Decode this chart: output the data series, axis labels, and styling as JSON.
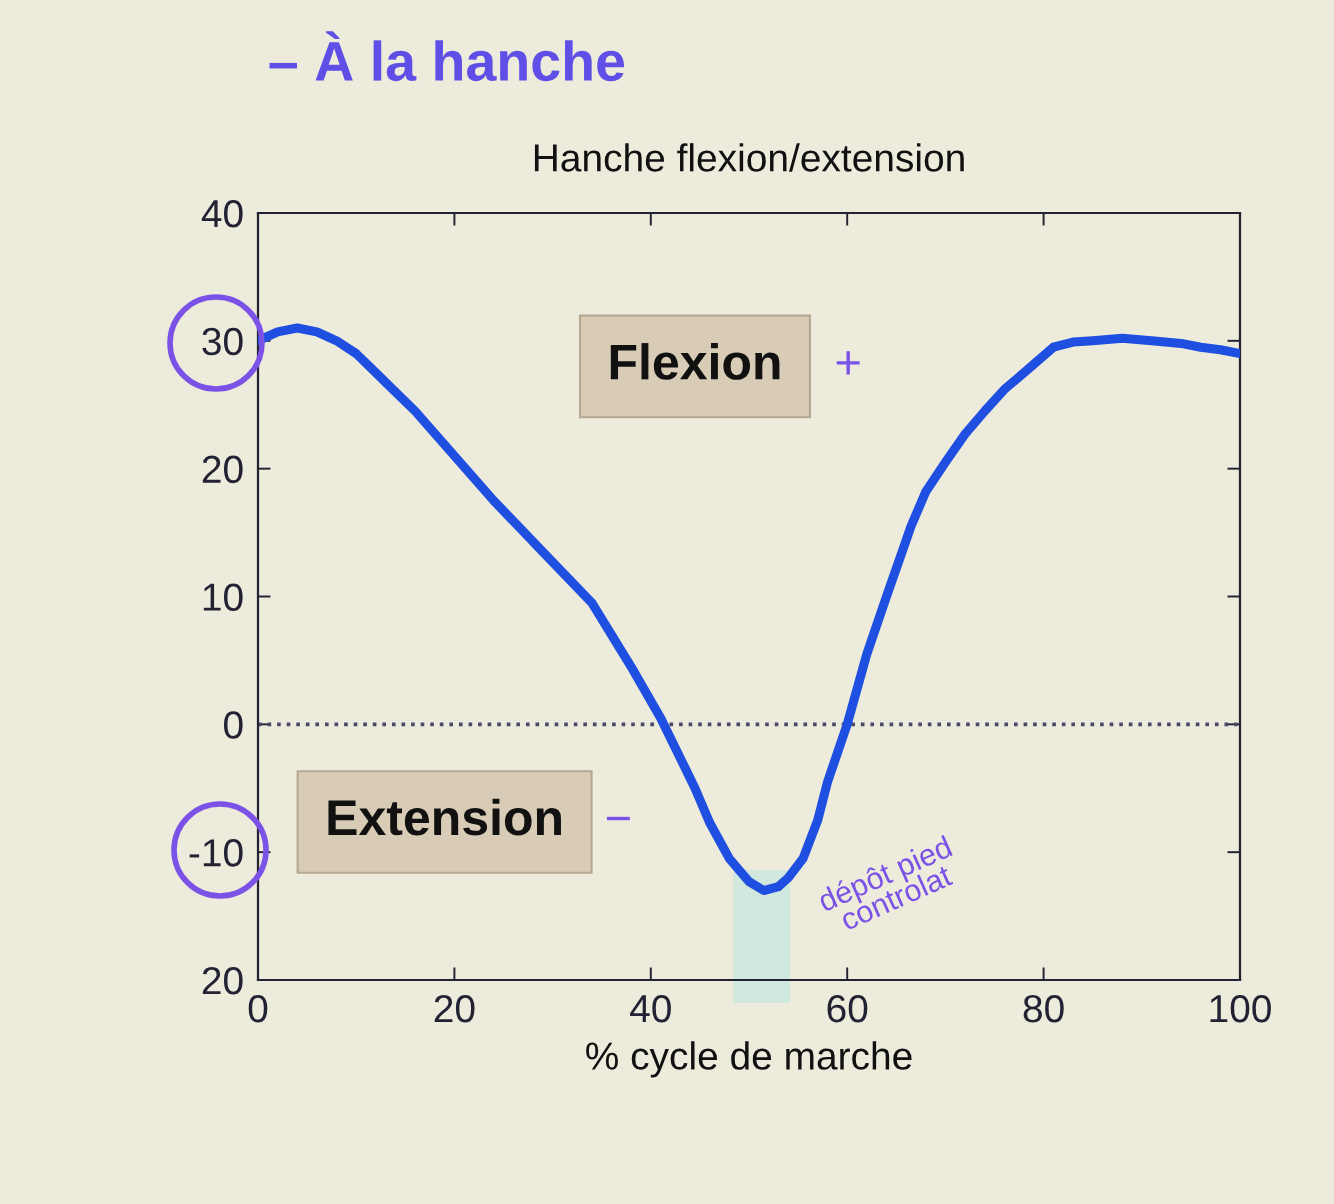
{
  "chart_data": {
    "type": "line",
    "title": "Hanche flexion/extension",
    "xlabel": "% cycle de marche",
    "x": [
      0,
      2,
      4,
      6,
      8,
      10,
      12,
      14,
      16,
      20,
      24,
      29,
      34,
      38,
      41,
      44.5,
      46,
      48,
      50,
      51.5,
      53,
      54,
      55.5,
      57,
      58,
      60,
      62,
      64,
      66.5,
      68,
      70,
      72,
      74,
      76,
      78,
      81,
      83,
      85,
      88,
      91,
      94,
      96,
      98,
      100
    ],
    "series": [
      {
        "color": "#1f4fe0",
        "values": [
          30,
          30.7,
          31,
          30.7,
          30,
          29,
          27.5,
          26,
          24.5,
          21,
          17.5,
          13.5,
          9.5,
          4.5,
          0.5,
          -5,
          -7.7,
          -10.5,
          -12.3,
          -13,
          -12.7,
          -12,
          -10.5,
          -7.5,
          -4.5,
          0,
          5.5,
          10,
          15.5,
          18.2,
          20.5,
          22.7,
          24.5,
          26.2,
          27.5,
          29.5,
          29.9,
          30,
          30.2,
          30,
          29.8,
          29.5,
          29.3,
          29
        ]
      }
    ],
    "xlim": [
      0,
      100
    ],
    "xticks": [
      0,
      20,
      40,
      60,
      80,
      100
    ],
    "ylim": [
      -20,
      40
    ],
    "yticks": [
      {
        "value": -20,
        "label": "20"
      },
      -10,
      0,
      10,
      20,
      30,
      40
    ],
    "ref_lines": [
      {
        "axis": "y",
        "value": 0,
        "color": "#4a4a6a",
        "line_style": "dotted"
      }
    ],
    "annotations": [
      "– À la hanche",
      "Flexion",
      "+",
      "Extension",
      "−",
      "dépôt pied\ncontrolat"
    ]
  }
}
